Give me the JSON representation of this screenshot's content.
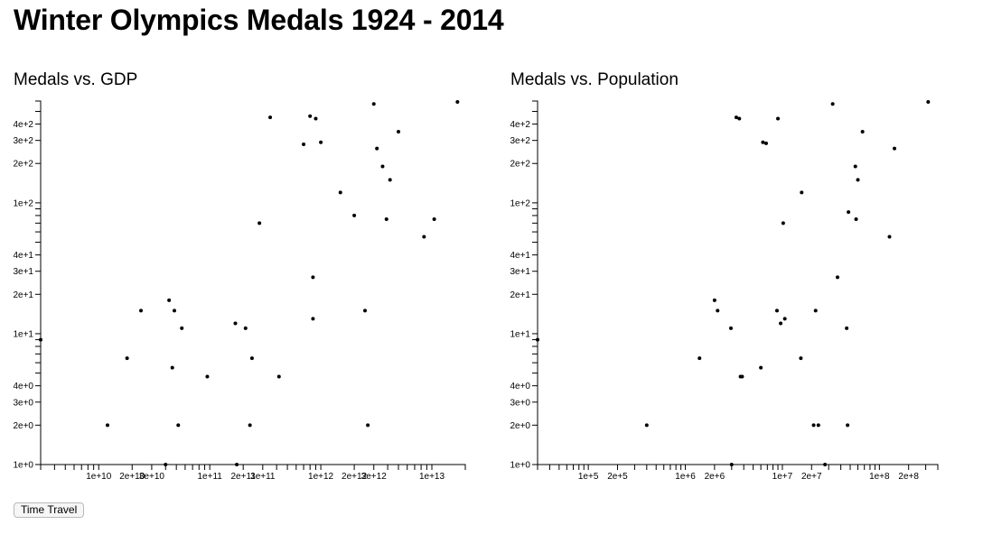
{
  "page": {
    "title": "Winter Olympics Medals 1924 - 2014"
  },
  "controls": {
    "time_travel_label": "Time Travel"
  },
  "chart_data": [
    {
      "id": "gdp",
      "type": "scatter",
      "title": "Medals vs. GDP",
      "xlabel": "",
      "ylabel": "",
      "xscale": "log",
      "yscale": "log",
      "xlim": [
        3000000000,
        20000000000000
      ],
      "ylim": [
        1,
        600
      ],
      "x_tick_values": [
        10000000000,
        20000000000,
        30000000000,
        100000000000,
        200000000000,
        300000000000,
        1000000000000,
        2000000000000,
        3000000000000,
        10000000000000
      ],
      "x_tick_labels": [
        "1e+10",
        "2e+10",
        "3e+10",
        "1e+11",
        "2e+11",
        "3e+11",
        "1e+12",
        "2e+12",
        "3e+12",
        "1e+13"
      ],
      "y_tick_values": [
        1,
        2,
        3,
        4,
        10,
        20,
        30,
        40,
        100,
        200,
        300,
        400
      ],
      "y_tick_labels": [
        "1e+0",
        "2e+0",
        "3e+0",
        "4e+0",
        "1e+1",
        "2e+1",
        "3e+1",
        "4e+1",
        "1e+2",
        "2e+2",
        "3e+2",
        "4e+2"
      ],
      "grid": false,
      "points": [
        {
          "x": 3000000000,
          "y": 9
        },
        {
          "x": 12000000000,
          "y": 2
        },
        {
          "x": 18000000000,
          "y": 6.5
        },
        {
          "x": 24000000000,
          "y": 15
        },
        {
          "x": 40000000000,
          "y": 1
        },
        {
          "x": 43000000000,
          "y": 18
        },
        {
          "x": 46000000000,
          "y": 5.5
        },
        {
          "x": 48000000000,
          "y": 15
        },
        {
          "x": 52000000000,
          "y": 2
        },
        {
          "x": 56000000000,
          "y": 11
        },
        {
          "x": 95000000000,
          "y": 4.7
        },
        {
          "x": 170000000000,
          "y": 12
        },
        {
          "x": 175000000000,
          "y": 1
        },
        {
          "x": 210000000000,
          "y": 11
        },
        {
          "x": 230000000000,
          "y": 2
        },
        {
          "x": 240000000000,
          "y": 6.5
        },
        {
          "x": 280000000000,
          "y": 70
        },
        {
          "x": 350000000000,
          "y": 450
        },
        {
          "x": 420000000000,
          "y": 4.7
        },
        {
          "x": 700000000000,
          "y": 280
        },
        {
          "x": 800000000000,
          "y": 460
        },
        {
          "x": 850000000000,
          "y": 27
        },
        {
          "x": 850000000000,
          "y": 13
        },
        {
          "x": 900000000000,
          "y": 440
        },
        {
          "x": 1000000000000,
          "y": 290
        },
        {
          "x": 1500000000000,
          "y": 120
        },
        {
          "x": 2000000000000,
          "y": 80
        },
        {
          "x": 2500000000000,
          "y": 15
        },
        {
          "x": 2650000000000,
          "y": 2
        },
        {
          "x": 3000000000000,
          "y": 570
        },
        {
          "x": 3200000000000,
          "y": 260
        },
        {
          "x": 3600000000000,
          "y": 190
        },
        {
          "x": 3900000000000,
          "y": 75
        },
        {
          "x": 4200000000000,
          "y": 150
        },
        {
          "x": 5000000000000,
          "y": 350
        },
        {
          "x": 8500000000000,
          "y": 55
        },
        {
          "x": 10500000000000,
          "y": 75
        },
        {
          "x": 17000000000000,
          "y": 590
        }
      ]
    },
    {
      "id": "pop",
      "type": "scatter",
      "title": "Medals vs. Population",
      "xlabel": "",
      "ylabel": "",
      "xscale": "log",
      "yscale": "log",
      "xlim": [
        30000,
        400000000
      ],
      "ylim": [
        1,
        600
      ],
      "x_tick_values": [
        100000,
        200000,
        1000000,
        2000000,
        10000000,
        20000000,
        100000000,
        200000000
      ],
      "x_tick_labels": [
        "1e+5",
        "2e+5",
        "1e+6",
        "2e+6",
        "1e+7",
        "2e+7",
        "1e+8",
        "2e+8"
      ],
      "y_tick_values": [
        1,
        2,
        3,
        4,
        10,
        20,
        30,
        40,
        100,
        200,
        300,
        400
      ],
      "y_tick_labels": [
        "1e+0",
        "2e+0",
        "3e+0",
        "4e+0",
        "1e+1",
        "2e+1",
        "3e+1",
        "4e+1",
        "1e+2",
        "2e+2",
        "3e+2",
        "4e+2"
      ],
      "grid": false,
      "points": [
        {
          "x": 30000,
          "y": 9
        },
        {
          "x": 400000,
          "y": 2
        },
        {
          "x": 1400000,
          "y": 6.5
        },
        {
          "x": 2000000,
          "y": 18
        },
        {
          "x": 2150000,
          "y": 15
        },
        {
          "x": 2950000,
          "y": 11
        },
        {
          "x": 3000000,
          "y": 1
        },
        {
          "x": 3350000,
          "y": 450
        },
        {
          "x": 3600000,
          "y": 440
        },
        {
          "x": 3700000,
          "y": 4.7
        },
        {
          "x": 3850000,
          "y": 4.7
        },
        {
          "x": 6000000,
          "y": 5.5
        },
        {
          "x": 6300000,
          "y": 290
        },
        {
          "x": 6800000,
          "y": 285
        },
        {
          "x": 8800000,
          "y": 15
        },
        {
          "x": 9000000,
          "y": 440
        },
        {
          "x": 9600000,
          "y": 12
        },
        {
          "x": 10200000,
          "y": 70
        },
        {
          "x": 10600000,
          "y": 13
        },
        {
          "x": 15500000,
          "y": 6.5
        },
        {
          "x": 15800000,
          "y": 120
        },
        {
          "x": 21000000,
          "y": 2
        },
        {
          "x": 22000000,
          "y": 15
        },
        {
          "x": 23500000,
          "y": 2
        },
        {
          "x": 27500000,
          "y": 1
        },
        {
          "x": 33000000,
          "y": 570
        },
        {
          "x": 37000000,
          "y": 27
        },
        {
          "x": 46000000,
          "y": 11
        },
        {
          "x": 47000000,
          "y": 2
        },
        {
          "x": 48000000,
          "y": 85
        },
        {
          "x": 56500000,
          "y": 190
        },
        {
          "x": 57500000,
          "y": 75
        },
        {
          "x": 60000000,
          "y": 150
        },
        {
          "x": 67000000,
          "y": 350
        },
        {
          "x": 127000000,
          "y": 55
        },
        {
          "x": 143000000,
          "y": 260
        },
        {
          "x": 318000000,
          "y": 590
        }
      ]
    }
  ]
}
